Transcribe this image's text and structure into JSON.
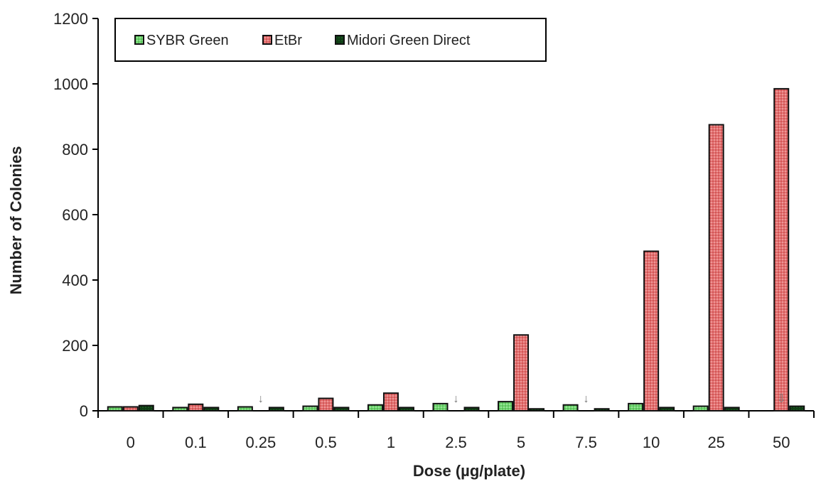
{
  "chart_data": {
    "type": "bar",
    "xlabel": "Dose (µg/plate)",
    "ylabel": "Number of Colonies",
    "ylim": [
      0,
      1200
    ],
    "yticks": [
      "0",
      "200",
      "400",
      "600",
      "800",
      "1000",
      "1200"
    ],
    "categories": [
      "0",
      "0.1",
      "0.25",
      "0.5",
      "1",
      "2.5",
      "5",
      "7.5",
      "10",
      "25",
      "50"
    ],
    "series": [
      {
        "name": "SYBR Green",
        "color": "#5ec95e",
        "values": [
          12,
          10,
          12,
          14,
          18,
          22,
          28,
          18,
          22,
          14,
          null
        ]
      },
      {
        "name": "EtBr",
        "color": "#e07070",
        "values": [
          12,
          20,
          null,
          38,
          54,
          null,
          232,
          null,
          488,
          875,
          985
        ]
      },
      {
        "name": "Midori Green Direct",
        "color": "#0e3d14",
        "values": [
          16,
          10,
          10,
          10,
          10,
          10,
          6,
          6,
          10,
          10,
          14
        ]
      }
    ],
    "annotations": [
      {
        "category": "0.25",
        "symbol": "↓"
      },
      {
        "category": "2.5",
        "symbol": "↓"
      },
      {
        "category": "7.5",
        "symbol": "↓"
      },
      {
        "category": "50",
        "symbol": "⇩"
      }
    ],
    "legend": "top-left",
    "grid": false
  }
}
